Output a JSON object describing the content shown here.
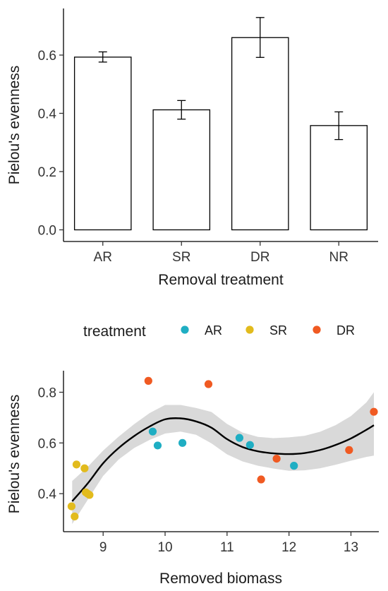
{
  "chart_data": [
    {
      "type": "bar",
      "xlabel": "Removal treatment",
      "ylabel": "Pielou's evenness",
      "categories": [
        "AR",
        "SR",
        "DR",
        "NR"
      ],
      "values": [
        0.593,
        0.412,
        0.66,
        0.358
      ],
      "error_low": [
        0.576,
        0.38,
        0.592,
        0.31
      ],
      "error_high": [
        0.611,
        0.444,
        0.729,
        0.405
      ],
      "ylim": [
        -0.04,
        0.76
      ],
      "yticks": [
        "0.0",
        "0.2",
        "0.4",
        "0.6"
      ],
      "grid": false,
      "bar_fill": "#ffffff",
      "bar_stroke": "#000000"
    },
    {
      "type": "scatter",
      "xlabel": "Removed biomass",
      "ylabel": "Pielou's evenness",
      "legend_title": "treatment",
      "legend_position": "top",
      "xlim": [
        8.36,
        13.45
      ],
      "ylim": [
        0.25,
        0.885
      ],
      "xticks": [
        "9",
        "10",
        "11",
        "12",
        "13"
      ],
      "yticks": [
        "0.4",
        "0.6",
        "0.8"
      ],
      "grid": false,
      "series": [
        {
          "name": "AR",
          "color": "#1faec3",
          "points": [
            [
              9.8,
              0.645
            ],
            [
              9.88,
              0.59
            ],
            [
              10.28,
              0.6
            ],
            [
              11.2,
              0.62
            ],
            [
              11.37,
              0.592
            ],
            [
              12.08,
              0.51
            ]
          ]
        },
        {
          "name": "SR",
          "color": "#e2bb1d",
          "points": [
            [
              8.49,
              0.35
            ],
            [
              8.54,
              0.31
            ],
            [
              8.57,
              0.515
            ],
            [
              8.7,
              0.5
            ],
            [
              8.72,
              0.405
            ],
            [
              8.78,
              0.395
            ],
            [
              8.75,
              0.4
            ]
          ]
        },
        {
          "name": "DR",
          "color": "#f05a22",
          "points": [
            [
              9.73,
              0.845
            ],
            [
              10.7,
              0.832
            ],
            [
              11.55,
              0.456
            ],
            [
              11.8,
              0.538
            ],
            [
              12.97,
              0.572
            ],
            [
              13.37,
              0.723
            ]
          ]
        }
      ],
      "smooth_fit": {
        "x": [
          8.5,
          8.75,
          9.0,
          9.25,
          9.5,
          9.75,
          10.0,
          10.25,
          10.5,
          10.75,
          11.0,
          11.25,
          11.5,
          11.75,
          12.0,
          12.25,
          12.5,
          12.75,
          13.0,
          13.25,
          13.37
        ],
        "y": [
          0.37,
          0.44,
          0.52,
          0.58,
          0.627,
          0.665,
          0.693,
          0.697,
          0.685,
          0.66,
          0.615,
          0.584,
          0.567,
          0.559,
          0.556,
          0.56,
          0.572,
          0.592,
          0.618,
          0.652,
          0.67
        ],
        "lower": [
          0.28,
          0.375,
          0.47,
          0.535,
          0.58,
          0.612,
          0.637,
          0.645,
          0.632,
          0.598,
          0.555,
          0.527,
          0.51,
          0.499,
          0.49,
          0.492,
          0.5,
          0.514,
          0.53,
          0.545,
          0.55
        ],
        "upper": [
          0.45,
          0.505,
          0.57,
          0.625,
          0.674,
          0.718,
          0.75,
          0.75,
          0.738,
          0.722,
          0.675,
          0.641,
          0.624,
          0.619,
          0.622,
          0.628,
          0.644,
          0.67,
          0.706,
          0.76,
          0.8
        ],
        "line_color": "#000000",
        "band_color": "#d9d9d9"
      }
    }
  ]
}
